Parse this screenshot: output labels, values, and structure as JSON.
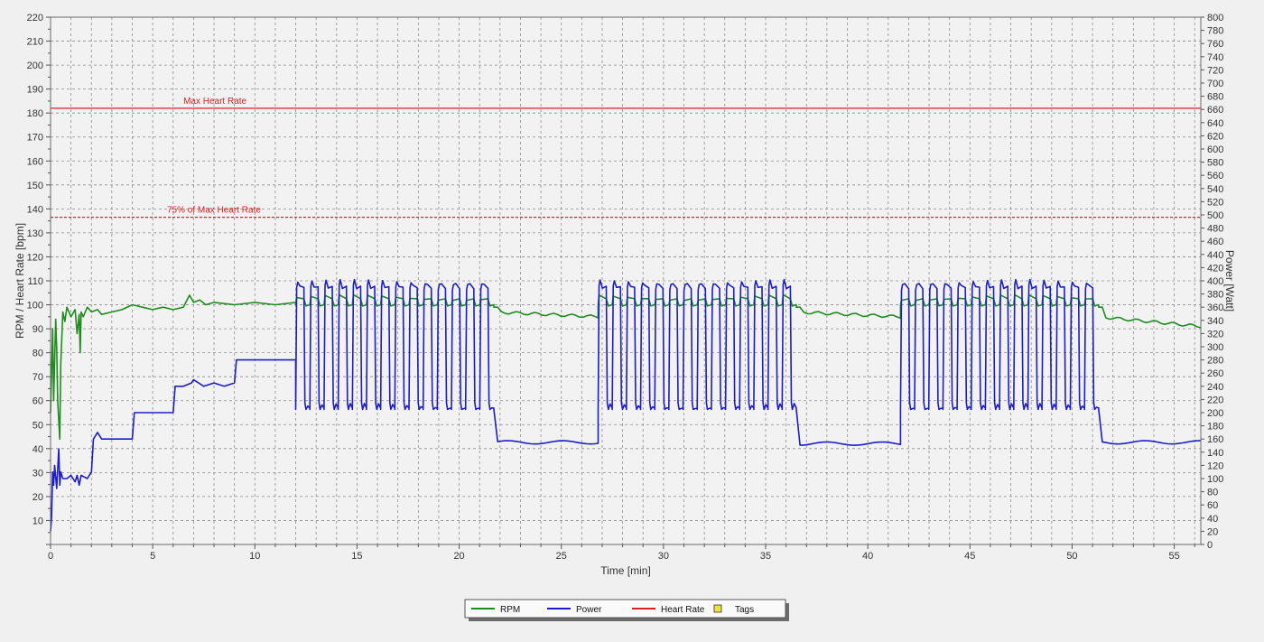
{
  "chart_data": {
    "type": "line",
    "xlabel": "Time [min]",
    "ylabel_left": "RPM / Heart Rate [bpm]",
    "ylabel_right": "Power [Watt]",
    "xlim": [
      0,
      56.3
    ],
    "ylim_left": [
      0,
      220
    ],
    "ylim_right": [
      0,
      800
    ],
    "x_ticks": [
      0,
      5,
      10,
      15,
      20,
      25,
      30,
      35,
      40,
      45,
      50,
      55
    ],
    "y_left_ticks": [
      10,
      20,
      30,
      40,
      50,
      60,
      70,
      80,
      90,
      100,
      110,
      120,
      130,
      140,
      150,
      160,
      170,
      180,
      190,
      200,
      210,
      220
    ],
    "y_right_ticks": [
      0,
      20,
      40,
      60,
      80,
      100,
      120,
      140,
      160,
      180,
      200,
      220,
      240,
      260,
      280,
      300,
      320,
      340,
      360,
      380,
      400,
      420,
      440,
      460,
      480,
      500,
      520,
      540,
      560,
      580,
      600,
      620,
      640,
      660,
      680,
      700,
      720,
      740,
      760,
      780,
      800
    ],
    "grid": true,
    "legend_position": "bottom-center",
    "reference_lines": [
      {
        "label": "Max Heart Rate",
        "value": 182,
        "axis": "left",
        "style": "solid",
        "color": "#e02020",
        "label_x": 6.5
      },
      {
        "label": "75% of Max Heart Rate",
        "value": 136.5,
        "axis": "left",
        "style": "dashed",
        "color": "#e02020",
        "label_x": 5.7
      }
    ],
    "legend": [
      {
        "label": "RPM",
        "color": "#1e8c1e",
        "kind": "line"
      },
      {
        "label": "Power",
        "color": "#1c1cc8",
        "kind": "line"
      },
      {
        "label": "Heart Rate",
        "color": "#e02020",
        "kind": "line"
      },
      {
        "label": "Tags",
        "color": "#f0e040",
        "kind": "square"
      }
    ],
    "series": [
      {
        "name": "RPM",
        "axis": "left",
        "color": "#1e8c1e",
        "x": [
          0,
          0.1,
          0.15,
          0.25,
          0.3,
          0.35,
          0.45,
          0.5,
          0.6,
          0.7,
          0.8,
          1.0,
          1.2,
          1.3,
          1.4,
          1.45,
          1.5,
          1.6,
          1.8,
          2.0,
          2.3,
          2.5,
          3.0,
          3.5,
          4.0,
          4.5,
          5.0,
          5.5,
          6.0,
          6.5,
          6.8,
          7.0,
          7.3,
          7.6,
          8.0,
          9.0,
          10.0,
          11.0,
          12.0
        ],
        "y": [
          55,
          90,
          60,
          94,
          82,
          60,
          44,
          75,
          97,
          93,
          99,
          95,
          98,
          88,
          96,
          80,
          97,
          95,
          99,
          97,
          98,
          96,
          97,
          98,
          100,
          99,
          98,
          99,
          98,
          99,
          104,
          101,
          102,
          100,
          101,
          100,
          101,
          100,
          101
        ]
      },
      {
        "name": "Power",
        "axis": "right",
        "color": "#1c1cc8",
        "x": [
          0,
          0.05,
          0.1,
          0.15,
          0.2,
          0.3,
          0.4,
          0.45,
          0.5,
          0.6,
          0.8,
          1.0,
          1.2,
          1.3,
          1.4,
          1.5,
          1.8,
          2.0,
          2.1,
          2.3,
          2.5,
          3.0,
          3.5,
          4.0,
          4.1,
          4.5,
          5.0,
          5.5,
          6.0,
          6.1,
          6.5,
          6.9,
          7.0,
          7.5,
          8.0,
          8.5,
          9.0,
          9.1,
          9.5,
          10.0,
          11.0,
          12.0
        ],
        "y": [
          20,
          40,
          110,
          90,
          120,
          85,
          145,
          90,
          110,
          100,
          100,
          105,
          95,
          105,
          90,
          105,
          100,
          110,
          160,
          170,
          160,
          160,
          160,
          160,
          200,
          200,
          200,
          200,
          200,
          240,
          240,
          245,
          250,
          240,
          245,
          240,
          245,
          280,
          280,
          280,
          280,
          280
        ]
      },
      {
        "name": "Heart Rate",
        "axis": "left",
        "color": "#e02020",
        "x": [],
        "y": []
      }
    ],
    "interval_blocks": [
      {
        "start": 12.0,
        "end": 21.7,
        "reps": 14,
        "power_high": 390,
        "power_low": 205,
        "rpm_high": 103,
        "rpm_low": 100
      },
      {
        "start": 26.8,
        "end": 36.5,
        "reps": 14,
        "power_high": 390,
        "power_low": 205,
        "rpm_high": 103,
        "rpm_low": 100
      },
      {
        "start": 41.6,
        "end": 51.3,
        "reps": 14,
        "power_high": 390,
        "power_low": 205,
        "rpm_high": 103,
        "rpm_low": 100
      }
    ],
    "recovery_blocks": [
      {
        "start": 21.7,
        "end": 26.8,
        "power": 155,
        "rpm_start": 97,
        "rpm_end": 95
      },
      {
        "start": 36.5,
        "end": 41.6,
        "power": 153,
        "rpm_start": 97,
        "rpm_end": 95
      },
      {
        "start": 51.3,
        "end": 56.3,
        "power": 155,
        "rpm_start": 95,
        "rpm_end": 91
      }
    ]
  }
}
